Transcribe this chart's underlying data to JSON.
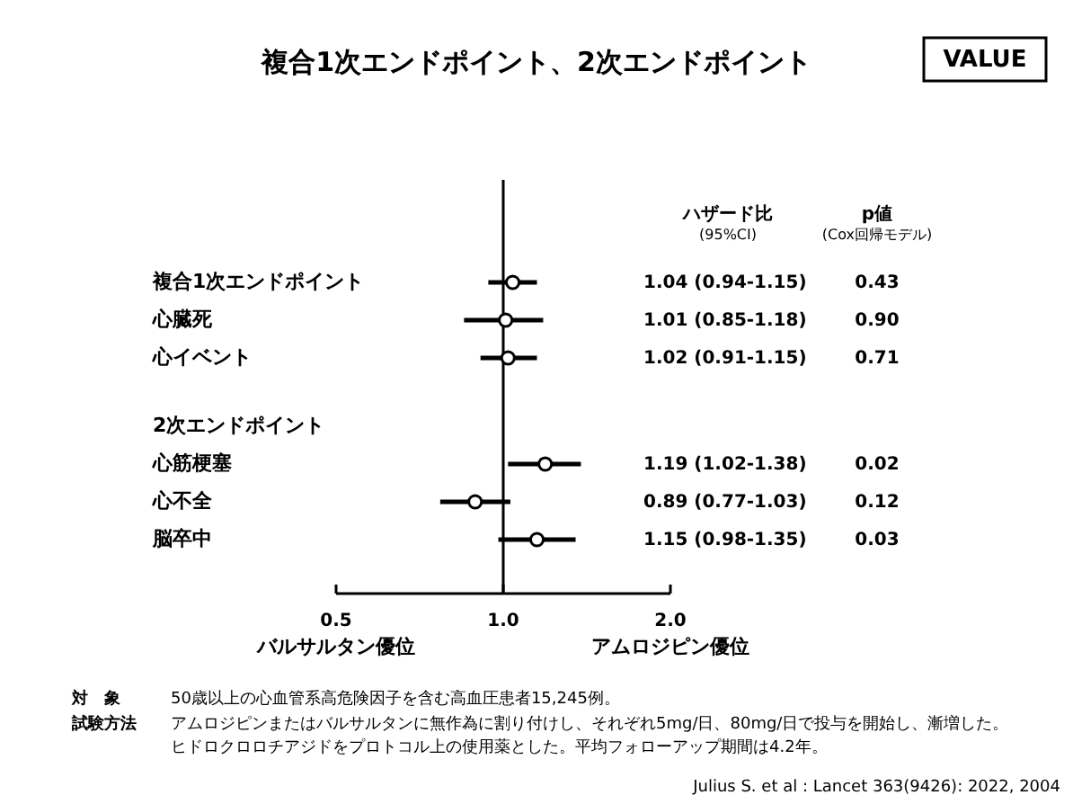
{
  "chart_data": {
    "type": "scatter",
    "orientation": "horizontal",
    "title": "複合1次エンドポイント、2次エンドポイント",
    "log": "x",
    "xlim": [
      0.5,
      2.0
    ],
    "xticks": [
      0.5,
      {
        "value": 1,
        "label": "1.0"
      },
      {
        "value": 2,
        "label": "2.0"
      }
    ],
    "categories": [
      "複合1次エンドポイント",
      "心臓死",
      "心イベント",
      "2次エンドポイント",
      "心筋梗塞",
      "心不全",
      "脳卒中"
    ],
    "series": [
      {
        "color": "#000000",
        "values": [
          1.04,
          1.01,
          1.02,
          null,
          1.19,
          0.89,
          1.15
        ],
        "errors": [
          [
            0.94,
            1.15
          ],
          [
            0.85,
            1.18
          ],
          [
            0.91,
            1.15
          ],
          null,
          [
            1.02,
            1.38
          ],
          [
            0.77,
            1.03
          ],
          [
            0.98,
            1.35
          ]
        ],
        "value_labels": [
          "1.04 (0.94-1.15)",
          "1.01 (0.85-1.18)",
          "1.02 (0.91-1.15)",
          null,
          "1.19 (1.02-1.38)",
          "0.89 (0.77-1.03)",
          "1.15 (0.98-1.35)"
        ]
      }
    ],
    "marker": "circle",
    "grid": false,
    "ref_lines": [
      {
        "axis": "x",
        "value": 1
      }
    ],
    "annotations": [
      "VALUE",
      "ハザード比",
      "(95%CI)",
      "p値",
      "(Cox回帰モデル)",
      "バルサルタン優位",
      "アムロジピン優位",
      "0.43",
      "0.90",
      "0.71",
      "0.02",
      "0.12",
      "0.03",
      "対　象",
      "50歳以上の心血管系高危険因子を含む高血圧患者15,245例。",
      "試験方法",
      "アムロジピンまたはバルサルタンに無作為に割り付けし、それぞれ5mg/日、80mg/日で投与を開始し、漸増した。",
      "ヒドロクロロチアジドをプロトコル上の使用薬とした。平均フォローアップ期間は4.2年。",
      "Julius S. et al : Lancet 363(9426): 2022, 2004"
    ]
  }
}
